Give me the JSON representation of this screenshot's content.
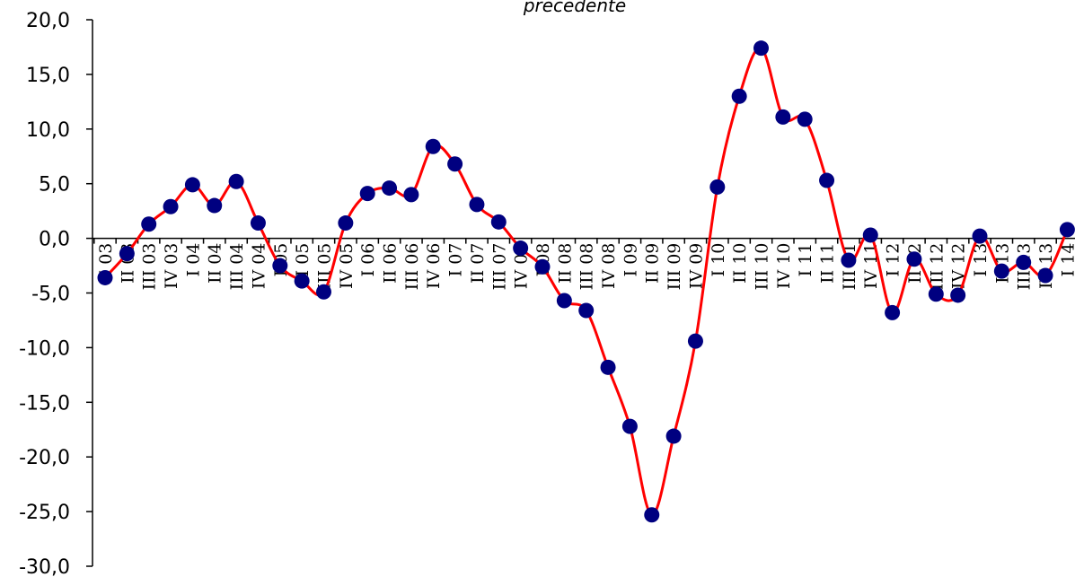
{
  "chart_data": {
    "type": "line",
    "title": "precedente",
    "xlabel": "",
    "ylabel": "",
    "ylim": [
      -30,
      20
    ],
    "ytick_step": 5,
    "y_tick_labels": [
      "20,0",
      "15,0",
      "10,0",
      "5,0",
      "0,0",
      "-5,0",
      "-10,0",
      "-15,0",
      "-20,0",
      "-25,0",
      "-30,0"
    ],
    "legend": "none",
    "grid": false,
    "smooth": true,
    "line_color": "#ff0000",
    "marker_color": "#000080",
    "categories": [
      "I 03",
      "II 03",
      "III 03",
      "IV 03",
      "I 04",
      "II 04",
      "III 04",
      "IV 04",
      "I 05",
      "II 05",
      "III 05",
      "IV 05",
      "I 06",
      "II 06",
      "III 06",
      "IV 06",
      "I 07",
      "II 07",
      "III 07",
      "IV 07",
      "I 08",
      "II 08",
      "III 08",
      "IV 08",
      "I 09",
      "II 09",
      "III 09",
      "IV 09",
      "I 10",
      "II 10",
      "III 10",
      "IV 10",
      "I 11",
      "II 11",
      "III 11",
      "IV 11",
      "I 12",
      "II 12",
      "III 12",
      "IV 12",
      "I 13",
      "II 13",
      "III 13",
      "IV 13",
      "I 14"
    ],
    "series": [
      {
        "values": [
          -3.6,
          -1.4,
          1.3,
          2.9,
          4.9,
          3.0,
          5.2,
          1.4,
          -2.5,
          -3.9,
          -4.9,
          1.4,
          4.1,
          4.6,
          4.0,
          8.4,
          6.8,
          3.1,
          1.5,
          -0.9,
          -2.6,
          -5.7,
          -6.6,
          -11.8,
          -17.2,
          -25.3,
          -18.1,
          -9.4,
          4.7,
          13.0,
          17.4,
          11.1,
          10.9,
          5.3,
          -2.0,
          0.3,
          -6.8,
          -1.9,
          -5.1,
          -5.2,
          0.2,
          -3.0,
          -2.2,
          -3.4,
          0.8
        ]
      }
    ]
  }
}
